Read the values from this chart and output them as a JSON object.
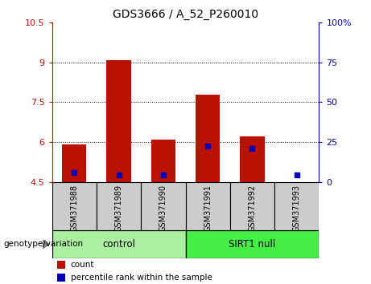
{
  "title": "GDS3666 / A_52_P260010",
  "categories": [
    "GSM371988",
    "GSM371989",
    "GSM371990",
    "GSM371991",
    "GSM371992",
    "GSM371993"
  ],
  "baseline": 4.5,
  "red_values": [
    5.9,
    9.1,
    6.1,
    7.8,
    6.2,
    4.5
  ],
  "blue_values_left": [
    4.85,
    4.75,
    4.75,
    5.85,
    5.75,
    4.75
  ],
  "ylim_left": [
    4.5,
    10.5
  ],
  "ylim_right": [
    0,
    100
  ],
  "yticks_left": [
    4.5,
    6.0,
    7.5,
    9.0,
    10.5
  ],
  "yticks_right": [
    0,
    25,
    50,
    75,
    100
  ],
  "ytick_labels_left": [
    "4.5",
    "6",
    "7.5",
    "9",
    "10.5"
  ],
  "ytick_labels_right": [
    "0",
    "25",
    "50",
    "75",
    "100%"
  ],
  "grid_lines": [
    6.0,
    7.5,
    9.0
  ],
  "groups": [
    {
      "label": "control",
      "start": 0,
      "end": 3,
      "color": "#aaf0a0"
    },
    {
      "label": "SIRT1 null",
      "start": 3,
      "end": 6,
      "color": "#44ee44"
    }
  ],
  "group_label_prefix": "genotype/variation",
  "legend_red": "count",
  "legend_blue": "percentile rank within the sample",
  "red_color": "#bb1100",
  "blue_color": "#0000bb",
  "bar_width": 0.55,
  "xlabels_bg": "#cccccc",
  "plot_bg": "#ffffff"
}
